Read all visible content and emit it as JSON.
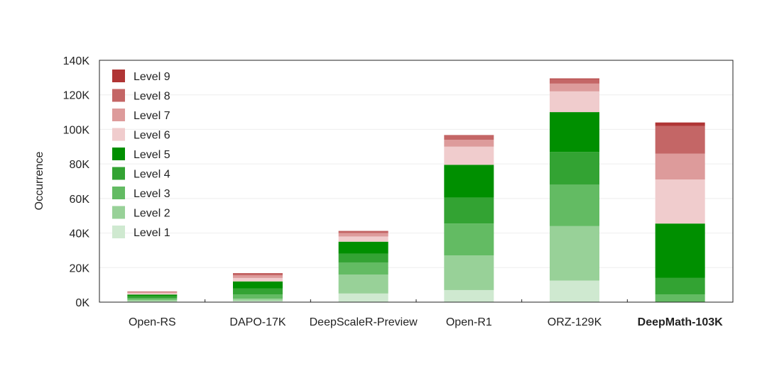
{
  "chart_data": {
    "type": "bar",
    "stacked": true,
    "title": "",
    "xlabel": "",
    "ylabel": "Occurrence",
    "ylim": [
      0,
      140000
    ],
    "yticks": [
      0,
      20000,
      40000,
      60000,
      80000,
      100000,
      120000,
      140000
    ],
    "ytick_labels": [
      "0K",
      "20K",
      "40K",
      "60K",
      "80K",
      "100K",
      "120K",
      "140K"
    ],
    "categories": [
      "Open-RS",
      "DAPO-17K",
      "DeepScaleR-Preview",
      "Open-R1",
      "ORZ-129K",
      "DeepMath-103K"
    ],
    "bold_category": "DeepMath-103K",
    "grid": true,
    "legend_position": "top-left",
    "series": [
      {
        "name": "Level 1",
        "color": "#cfe9d0",
        "values": [
          500,
          800,
          5000,
          7000,
          12500,
          0
        ]
      },
      {
        "name": "Level 2",
        "color": "#98d198",
        "values": [
          800,
          1200,
          11000,
          20000,
          31500,
          0
        ]
      },
      {
        "name": "Level 3",
        "color": "#63bb63",
        "values": [
          1000,
          2500,
          7000,
          18500,
          24000,
          4500
        ]
      },
      {
        "name": "Level 4",
        "color": "#33a333",
        "values": [
          1100,
          3500,
          5000,
          15000,
          19000,
          9500
        ]
      },
      {
        "name": "Level 5",
        "color": "#008f00",
        "values": [
          1000,
          4000,
          7000,
          19000,
          23000,
          31500
        ]
      },
      {
        "name": "Level 6",
        "color": "#f0cccd",
        "values": [
          800,
          2000,
          3000,
          10500,
          12000,
          25500
        ]
      },
      {
        "name": "Level 7",
        "color": "#dd9b9b",
        "values": [
          600,
          1600,
          2000,
          4000,
          4500,
          15000
        ]
      },
      {
        "name": "Level 8",
        "color": "#c46666",
        "values": [
          300,
          1000,
          900,
          2500,
          2500,
          16000
        ]
      },
      {
        "name": "Level 9",
        "color": "#b03535",
        "values": [
          100,
          200,
          300,
          200,
          500,
          2000
        ]
      }
    ]
  }
}
